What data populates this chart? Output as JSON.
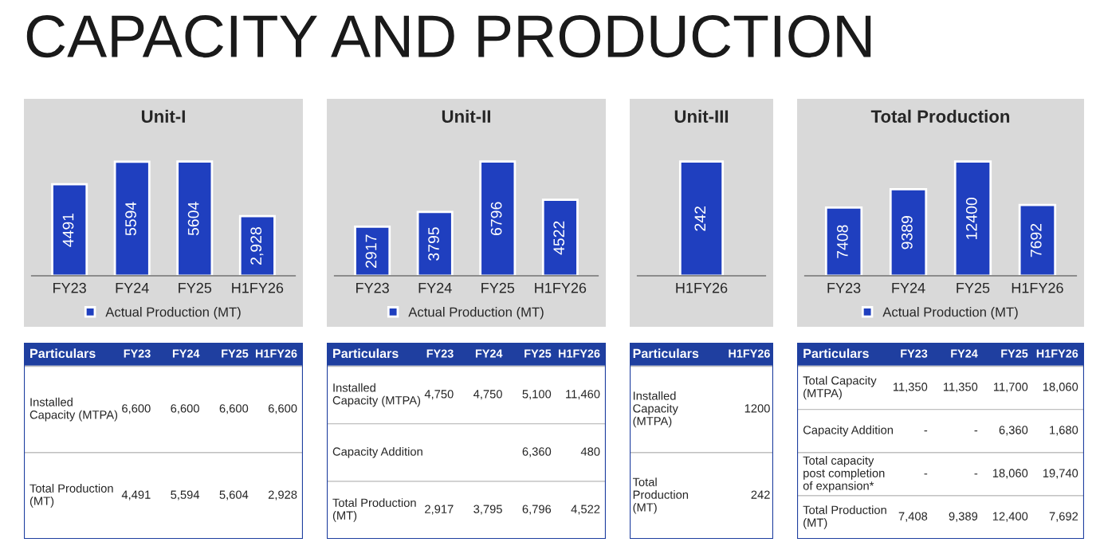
{
  "chart_data": [
    {
      "type": "other",
      "title": "CAPACITY AND PRODUCTION"
    },
    {
      "type": "bar",
      "title": "Unit-I",
      "categories": [
        "FY23",
        "FY24",
        "FY25",
        "H1FY26"
      ],
      "tick_labels": "x",
      "legend": "bottom",
      "series": [
        {
          "name": "Actual Production (MT)",
          "color": "#1f3fbf",
          "values": [
            4491,
            5594,
            5604,
            2928
          ],
          "value_labels": [
            "4491",
            "5594",
            "5604",
            "2,928"
          ]
        }
      ]
    },
    {
      "type": "bar",
      "title": "Unit-II",
      "categories": [
        "FY23",
        "FY24",
        "FY25",
        "H1FY26"
      ],
      "tick_labels": "x",
      "legend": "bottom",
      "series": [
        {
          "name": "Actual Production (MT)",
          "color": "#1f3fbf",
          "values": [
            2917,
            3795,
            6796,
            4522
          ],
          "value_labels": [
            "2917",
            "3795",
            "6796",
            "4522"
          ]
        }
      ]
    },
    {
      "type": "bar",
      "title": "Unit-III",
      "categories": [
        "H1FY26"
      ],
      "tick_labels": "x",
      "series": [
        {
          "color": "#1f3fbf",
          "values": [
            242
          ],
          "value_labels": [
            "242"
          ]
        }
      ]
    },
    {
      "type": "bar",
      "title": "Total Production",
      "categories": [
        "FY23",
        "FY24",
        "FY25",
        "H1FY26"
      ],
      "tick_labels": "x",
      "legend": "bottom",
      "series": [
        {
          "name": "Actual Production (MT)",
          "color": "#1f3fbf",
          "values": [
            7408,
            9389,
            12400,
            7692
          ],
          "value_labels": [
            "7408",
            "9389",
            "12400",
            "7692"
          ]
        }
      ]
    },
    {
      "type": "other",
      "categories": [
        "Particulars",
        "FY23",
        "FY24",
        "FY25",
        "H1FY26"
      ],
      "y_categories": [
        "Installed Capacity (MTPA)",
        "Total Production (MT)"
      ],
      "cell_labels": [
        [
          "6,600",
          "6,600",
          "6,600",
          "6,600"
        ],
        [
          "4,491",
          "5,594",
          "5,604",
          "2,928"
        ]
      ]
    },
    {
      "type": "other",
      "categories": [
        "Particulars",
        "FY23",
        "FY24",
        "FY25",
        "H1FY26"
      ],
      "y_categories": [
        "Installed Capacity (MTPA)",
        "Capacity Addition",
        "Total Production (MT)"
      ],
      "cell_labels": [
        [
          "4,750",
          "4,750",
          "5,100",
          "11,460"
        ],
        [
          null,
          null,
          "6,360",
          "480"
        ],
        [
          "2,917",
          "3,795",
          "6,796",
          "4,522"
        ]
      ]
    },
    {
      "type": "other",
      "categories": [
        "Particulars",
        "H1FY26"
      ],
      "y_categories": [
        "Installed Capacity (MTPA)",
        "Total Production (MT)"
      ],
      "cell_labels": [
        [
          "1200"
        ],
        [
          "242"
        ]
      ]
    },
    {
      "type": "other",
      "categories": [
        "Particulars",
        "FY23",
        "FY24",
        "FY25",
        "H1FY26"
      ],
      "y_categories": [
        "Total Capacity (MTPA)",
        "Capacity Addition",
        "Total capacity post completion of expansion*",
        "Total Production (MT)"
      ],
      "cell_labels": [
        [
          "11,350",
          "11,350",
          "11,700",
          "18,060"
        ],
        [
          "-",
          "-",
          "6,360",
          "1,680"
        ],
        [
          "-",
          "-",
          "18,060",
          "19,740"
        ],
        [
          "7,408",
          "9,389",
          "12,400",
          "7,692"
        ]
      ]
    }
  ]
}
